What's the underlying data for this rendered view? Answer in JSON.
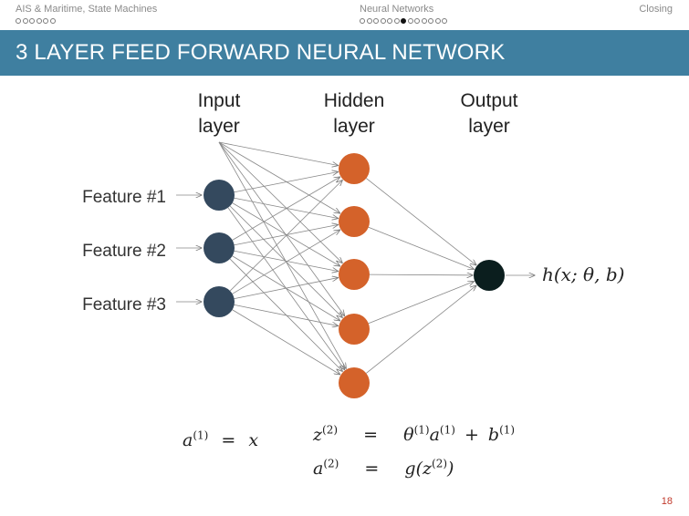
{
  "navbar": {
    "sections": [
      {
        "title": "AIS & Maritime, State Machines",
        "dots": 6,
        "active": -1
      },
      {
        "title": "Neural Networks",
        "dots": 13,
        "active": 6
      },
      {
        "title": "Closing",
        "dots": 0,
        "active": -1
      }
    ]
  },
  "slide": {
    "title": "3 LAYER FEED FORWARD NEURAL NETWORK",
    "page_number": "18"
  },
  "diagram": {
    "layers": [
      {
        "label_line1": "Input",
        "label_line2": "layer",
        "nodes": 3,
        "color": "#34495e"
      },
      {
        "label_line1": "Hidden",
        "label_line2": "layer",
        "nodes": 5,
        "color": "#d4622a"
      },
      {
        "label_line1": "Output",
        "label_line2": "layer",
        "nodes": 1,
        "color": "#0b1e1e"
      }
    ],
    "features": [
      "Feature #1",
      "Feature #2",
      "Feature #3"
    ],
    "output_label": "h(x; θ, b)",
    "edge_color": "#888888"
  },
  "equations": {
    "eq1_lhs": "a",
    "eq1_sup": "(1)",
    "eq1_op": "=",
    "eq1_rhs": "x",
    "eq2_lhs": "z",
    "eq2_lhs_sup": "(2)",
    "eq2_op": "=",
    "eq2_t1": "θ",
    "eq2_t1_sup": "(1)",
    "eq2_t2": "a",
    "eq2_t2_sup": "(1)",
    "eq2_plus": "+",
    "eq2_t3": "b",
    "eq2_t3_sup": "(1)",
    "eq3_lhs": "a",
    "eq3_lhs_sup": "(2)",
    "eq3_op": "=",
    "eq3_fn": "g(z",
    "eq3_fn_sup": "(2)",
    "eq3_close": ")"
  }
}
